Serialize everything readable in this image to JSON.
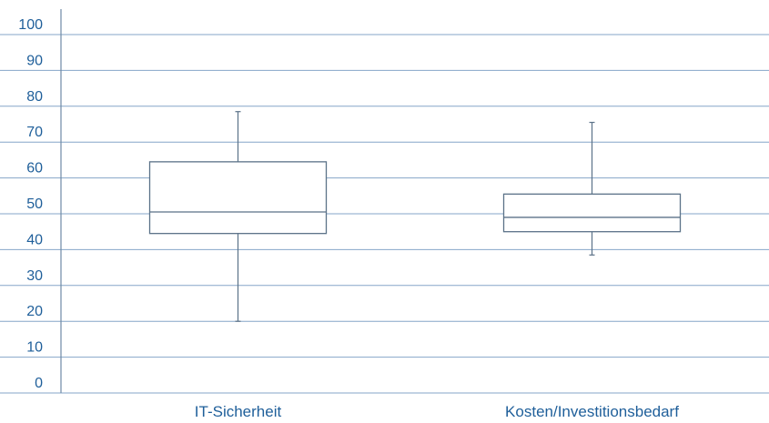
{
  "chart_data": {
    "type": "boxplot",
    "title": "",
    "xlabel": "",
    "ylabel": "",
    "ylim": [
      0,
      100
    ],
    "yticks": [
      "0",
      "10",
      "20",
      "30",
      "40",
      "50",
      "60",
      "70",
      "80",
      "90",
      "100"
    ],
    "grid": true,
    "categories": [
      "IT-Sicherheit",
      "Kosten/Investitionsbedarf"
    ],
    "boxes": [
      {
        "min": 20,
        "q1": 44.5,
        "median": 50.5,
        "q3": 64.5,
        "max": 78.5
      },
      {
        "min": 38.5,
        "q1": 45,
        "median": 49,
        "q3": 55.5,
        "max": 75.5
      }
    ],
    "colors": {
      "text": "#1f5f9a",
      "grid": "#86a6c8",
      "box": "#5b7288"
    }
  }
}
